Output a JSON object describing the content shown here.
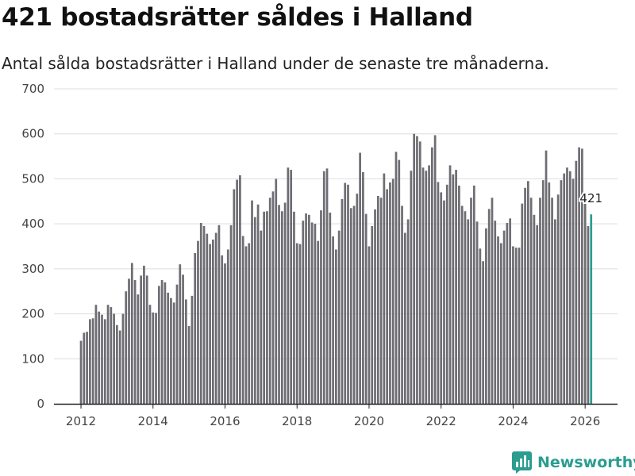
{
  "chart_data": {
    "type": "bar",
    "title": "421 bostadsrätter såldes i Halland",
    "subtitle": "Antal sålda bostadsrätter i Halland under de senaste tre månaderna.",
    "xlabel": "",
    "ylabel": "",
    "ylim": [
      0,
      700
    ],
    "yticks": [
      0,
      100,
      200,
      300,
      400,
      500,
      600,
      700
    ],
    "xlim": [
      2011.25,
      2026.9
    ],
    "xticks": [
      2012,
      2014,
      2016,
      2018,
      2020,
      2022,
      2024,
      2026
    ],
    "grid": true,
    "start": {
      "year": 2012,
      "month": 1
    },
    "values": [
      140,
      158,
      160,
      188,
      190,
      220,
      205,
      198,
      188,
      220,
      215,
      200,
      175,
      163,
      200,
      250,
      278,
      313,
      275,
      243,
      285,
      307,
      285,
      220,
      203,
      202,
      262,
      275,
      270,
      247,
      235,
      225,
      265,
      310,
      287,
      232,
      173,
      240,
      335,
      362,
      402,
      395,
      378,
      355,
      365,
      380,
      397,
      330,
      312,
      343,
      397,
      477,
      498,
      508,
      373,
      350,
      357,
      452,
      415,
      443,
      385,
      427,
      428,
      458,
      472,
      500,
      442,
      428,
      447,
      525,
      520,
      427,
      357,
      355,
      407,
      423,
      420,
      403,
      400,
      362,
      430,
      517,
      523,
      425,
      372,
      343,
      385,
      455,
      491,
      487,
      435,
      440,
      467,
      558,
      515,
      422,
      350,
      395,
      432,
      462,
      458,
      512,
      477,
      492,
      500,
      560,
      542,
      440,
      380,
      410,
      518,
      600,
      595,
      583,
      525,
      518,
      530,
      570,
      597,
      493,
      470,
      452,
      487,
      530,
      510,
      520,
      485,
      440,
      428,
      410,
      458,
      485,
      405,
      345,
      317,
      390,
      433,
      458,
      407,
      372,
      357,
      385,
      402,
      412,
      350,
      347,
      347,
      445,
      480,
      495,
      458,
      420,
      397,
      458,
      497,
      563,
      492,
      458,
      410,
      465,
      497,
      512,
      525,
      517,
      500,
      540,
      570,
      567,
      448,
      395,
      421
    ],
    "highlight_index": 170,
    "annotation": "421",
    "bar_color": "#6e6d73",
    "highlight_color": "#2a9d90"
  },
  "brand": {
    "name": "Newsworthy",
    "logo_icon": "bar-chart-logo-icon",
    "color": "#2a9d90"
  }
}
